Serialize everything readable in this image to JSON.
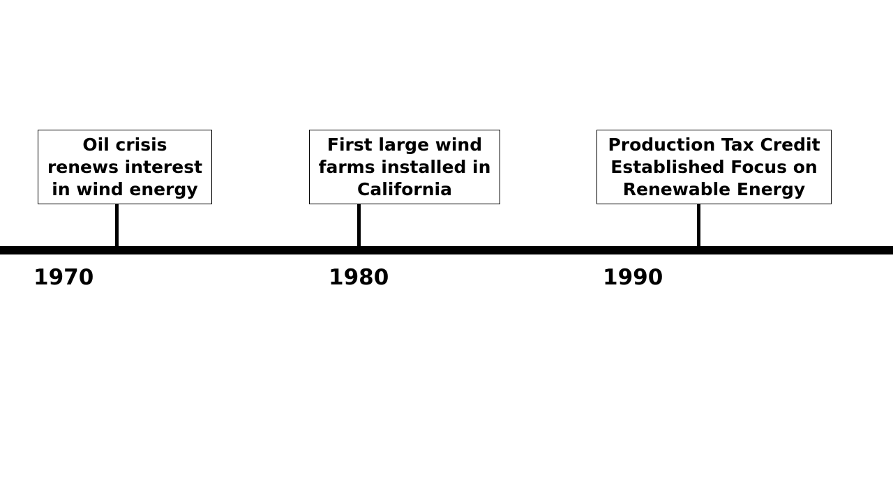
{
  "timeline": {
    "events": [
      {
        "year": "1970",
        "text": "Oil crisis\nrenews interest\nin wind energy"
      },
      {
        "year": "1980",
        "text": "First large wind\nfarms installed in\nCalifornia"
      },
      {
        "year": "1990",
        "text": "Production Tax Credit\nEstablished Focus on\nRenewable Energy"
      }
    ]
  }
}
